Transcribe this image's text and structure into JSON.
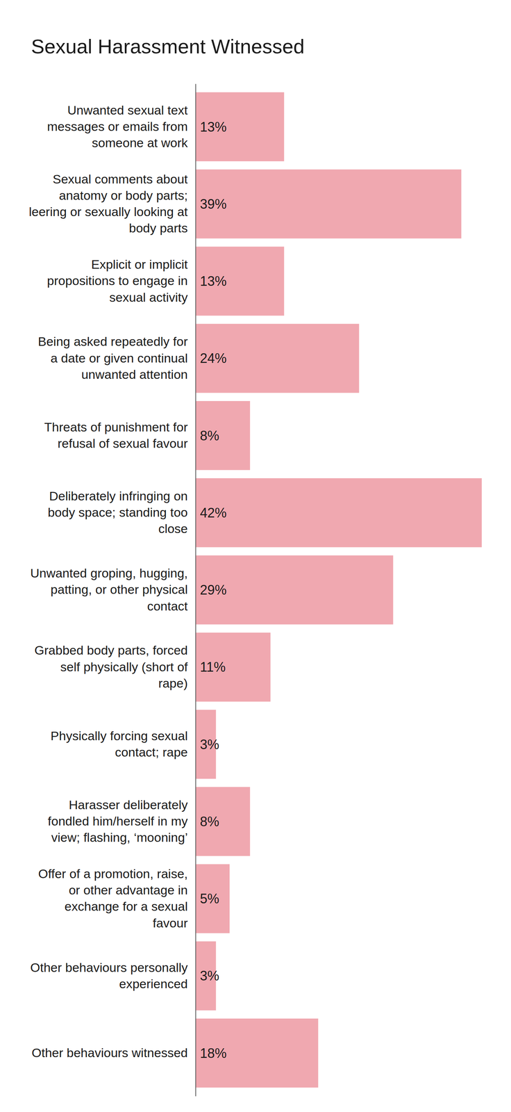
{
  "chart_data": {
    "type": "bar",
    "title": "Sexual Harassment Witnessed",
    "orientation": "horizontal",
    "categories": [
      "Unwanted sexual text messages or emails from someone at work",
      "Sexual comments about anatomy or body parts; leering or sexually looking at body parts",
      "Explicit or implicit propositions to engage in sexual activity",
      "Being asked repeatedly for a date or given continual unwanted attention",
      "Threats of punishment for refusal of sexual favour",
      "Deliberately infringing on body space; standing too close",
      "Unwanted groping, hugging, patting, or other physical contact",
      "Grabbed body parts, forced self physically (short of rape)",
      "Physically forcing sexual contact; rape",
      "Harasser deliberately fondled him/herself in my view; flashing, ‘mooning’",
      "Offer of a promotion, raise, or other advantage in exchange for a sexual favour",
      "Other behaviours personally experienced",
      "Other behaviours witnessed"
    ],
    "values": [
      13,
      39,
      13,
      24,
      8,
      42,
      29,
      11,
      3,
      8,
      5,
      3,
      18
    ],
    "value_labels": [
      "13%",
      "39%",
      "13%",
      "24%",
      "8%",
      "42%",
      "29%",
      "11%",
      "3%",
      "8%",
      "5%",
      "3%",
      "18%"
    ],
    "color": "#f0a8b0",
    "xlim": [
      0,
      42
    ],
    "data_labels": true,
    "tick_labels": "y",
    "grid": false
  }
}
